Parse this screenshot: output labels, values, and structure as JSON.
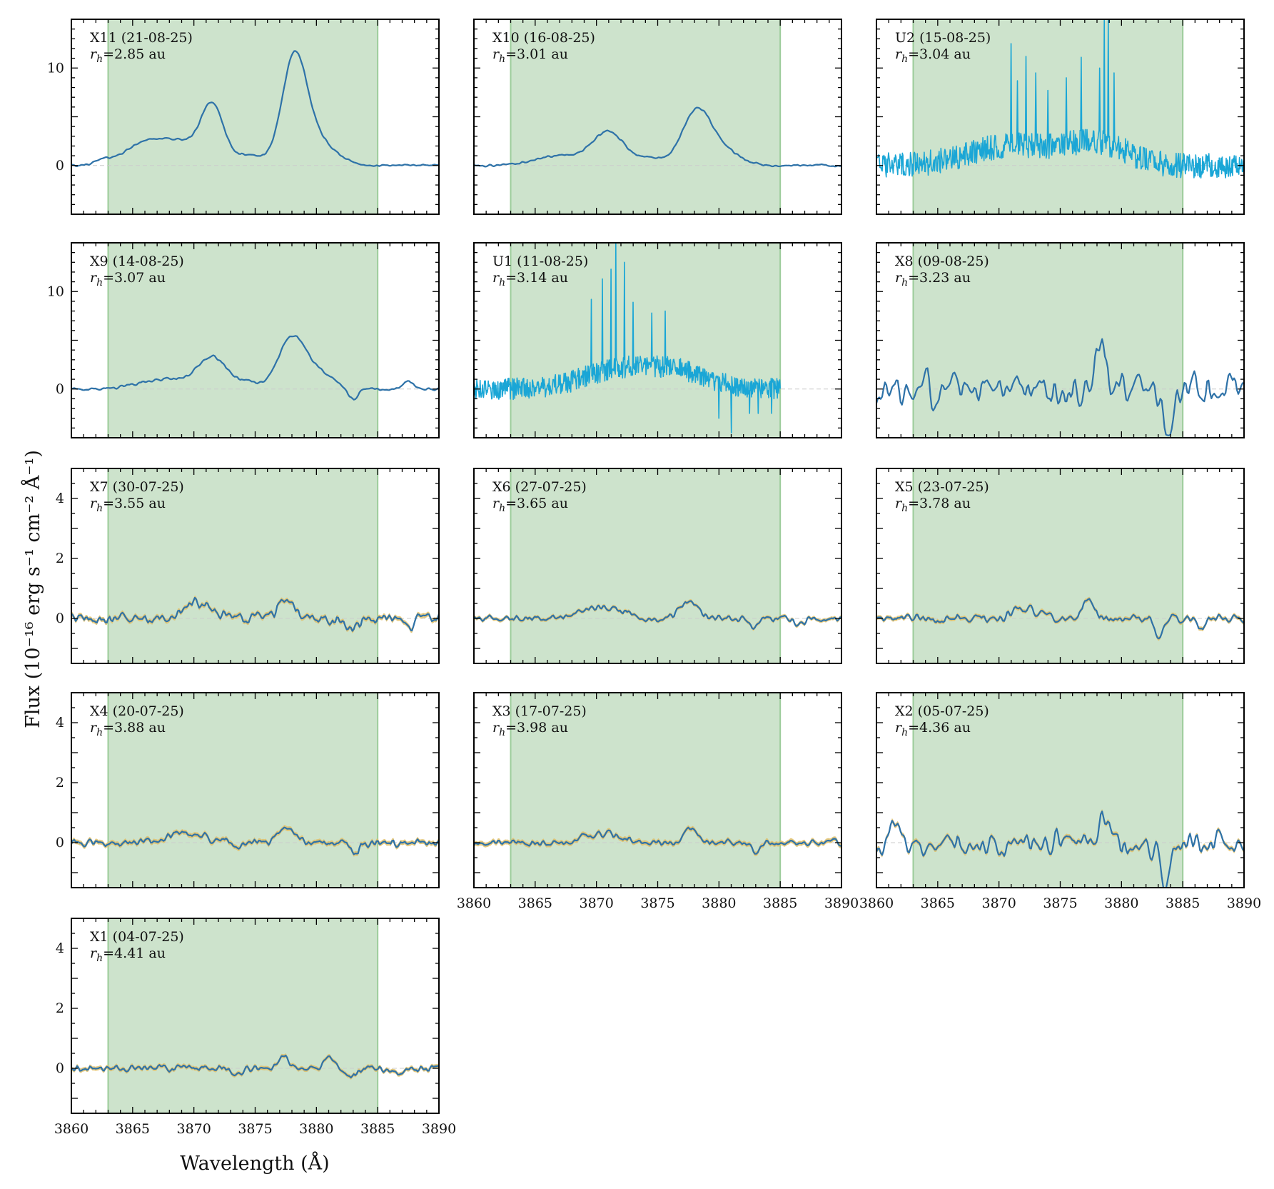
{
  "chart_data": {
    "type": "line",
    "ylabel": "Flux (10⁻¹⁶ erg s⁻¹ cm⁻² Å⁻¹)",
    "xlabel": "Wavelength (Å)",
    "xlim": [
      3860,
      3890
    ],
    "xticks": [
      3860,
      3865,
      3870,
      3875,
      3880,
      3885,
      3890
    ],
    "shaded_band": [
      3863,
      3885
    ],
    "rh_prefix": "r",
    "rh_sub": "h",
    "rh_unit": " au",
    "colors": {
      "line": "#2e72a8",
      "uv_line": "#1aa6d6",
      "error_band": "#e1bf68",
      "band": "#cde3cc",
      "band_edge": "#9ccc9a",
      "zero": "#cccccc"
    },
    "panels": [
      {
        "id": "X11",
        "date": "21-08-25",
        "rh": "2.85",
        "ylim": [
          -5,
          15
        ],
        "yticks": [
          0,
          10
        ],
        "style": "smooth",
        "noise": 0.15,
        "seed": 11,
        "peaks": [
          [
            3862.5,
            0.5,
            0.6
          ],
          [
            3865.5,
            1.3,
            1.5
          ],
          [
            3868.5,
            2.5,
            2.2
          ],
          [
            3871.5,
            5.5,
            0.9
          ],
          [
            3874.5,
            1.0,
            1.2
          ],
          [
            3878.2,
            10.5,
            1.0
          ],
          [
            3880.0,
            2.5,
            1.5
          ]
        ]
      },
      {
        "id": "X10",
        "date": "16-08-25",
        "rh": "3.01",
        "ylim": [
          -5,
          15
        ],
        "yticks": [
          0,
          10
        ],
        "style": "smooth",
        "noise": 0.15,
        "seed": 10,
        "peaks": [
          [
            3867.0,
            1.0,
            2.0
          ],
          [
            3871.0,
            3.4,
            1.3
          ],
          [
            3874.5,
            0.7,
            1.0
          ],
          [
            3878.2,
            5.6,
            1.2
          ],
          [
            3880.5,
            1.3,
            1.3
          ]
        ]
      },
      {
        "id": "U2",
        "date": "15-08-25",
        "rh": "3.04",
        "ylim": [
          -5,
          15
        ],
        "yticks": [
          0,
          10
        ],
        "style": "uv",
        "noise": 1.3,
        "seed": 2,
        "peaks": [
          [
            3871,
            2.0,
            3.5
          ],
          [
            3878,
            2.2,
            2.5
          ]
        ],
        "spikes": [
          [
            3871.0,
            12.5
          ],
          [
            3871.5,
            8.7
          ],
          [
            3872.2,
            11.2
          ],
          [
            3873.0,
            9.5
          ],
          [
            3874.0,
            7.7
          ],
          [
            3875.5,
            9.0
          ],
          [
            3876.7,
            11.1
          ],
          [
            3878.2,
            10.0
          ],
          [
            3878.6,
            15.0
          ],
          [
            3878.9,
            15.0
          ],
          [
            3879.4,
            9.5
          ]
        ]
      },
      {
        "id": "X9",
        "date": "14-08-25",
        "rh": "3.07",
        "ylim": [
          -5,
          15
        ],
        "yticks": [
          0,
          10
        ],
        "style": "smooth",
        "noise": 0.2,
        "seed": 9,
        "peaks": [
          [
            3867.5,
            1.0,
            2.0
          ],
          [
            3871.5,
            3.2,
            1.2
          ],
          [
            3874.5,
            0.6,
            1.0
          ],
          [
            3878.0,
            5.3,
            1.1
          ],
          [
            3880.3,
            1.5,
            1.2
          ],
          [
            3883.0,
            -1.2,
            0.4
          ],
          [
            3887.5,
            0.8,
            0.5
          ]
        ]
      },
      {
        "id": "U1",
        "date": "11-08-25",
        "rh": "3.14",
        "ylim": [
          -5,
          15
        ],
        "yticks": [
          0,
          10
        ],
        "style": "uv",
        "noise": 1.1,
        "seed": 1,
        "xmax": 3885,
        "peaks": [
          [
            3872,
            2.0,
            3.0
          ],
          [
            3877,
            1.5,
            2.5
          ]
        ],
        "spikes": [
          [
            3869.6,
            9.2
          ],
          [
            3870.5,
            11.3
          ],
          [
            3871.2,
            12.3
          ],
          [
            3871.6,
            15.0
          ],
          [
            3872.3,
            13.0
          ],
          [
            3873.0,
            8.9
          ],
          [
            3874.5,
            7.8
          ],
          [
            3875.6,
            8.0
          ]
        ],
        "dips": [
          [
            3880.0,
            -3.0
          ],
          [
            3881.0,
            -4.5
          ],
          [
            3882.5,
            -2.5
          ],
          [
            3883.2,
            -2.5
          ],
          [
            3884.3,
            -2.5
          ]
        ]
      },
      {
        "id": "X8",
        "date": "09-08-25",
        "rh": "3.23",
        "ylim": [
          -5,
          15
        ],
        "yticks": [
          0,
          10
        ],
        "style": "smooth",
        "noise": 3.0,
        "seed": 8,
        "smooth": 2,
        "peaks": [
          [
            3878.3,
            5.0,
            0.4
          ],
          [
            3883.8,
            -5.0,
            0.3
          ]
        ]
      },
      {
        "id": "X7",
        "date": "30-07-25",
        "rh": "3.55",
        "ylim": [
          -1.5,
          5
        ],
        "yticks": [
          0,
          2,
          4
        ],
        "style": "smooth",
        "noise": 0.25,
        "seed": 7,
        "err": 0.08,
        "peaks": [
          [
            3870.5,
            0.5,
            1.2
          ],
          [
            3877.5,
            0.75,
            0.6
          ],
          [
            3883.0,
            -0.4,
            0.4
          ],
          [
            3887.5,
            -0.35,
            0.3
          ]
        ]
      },
      {
        "id": "X6",
        "date": "27-07-25",
        "rh": "3.65",
        "ylim": [
          -1.5,
          5
        ],
        "yticks": [
          0,
          2,
          4
        ],
        "style": "smooth",
        "noise": 0.15,
        "seed": 6,
        "err": 0.06,
        "peaks": [
          [
            3870.5,
            0.4,
            1.5
          ],
          [
            3877.5,
            0.55,
            0.7
          ],
          [
            3882.8,
            -0.3,
            0.4
          ],
          [
            3886.5,
            -0.2,
            0.4
          ]
        ]
      },
      {
        "id": "X5",
        "date": "23-07-25",
        "rh": "3.78",
        "ylim": [
          -1.5,
          5
        ],
        "yticks": [
          0,
          2,
          4
        ],
        "style": "smooth",
        "noise": 0.2,
        "seed": 5,
        "err": 0.07,
        "peaks": [
          [
            3872.0,
            0.3,
            1.0
          ],
          [
            3877.3,
            0.6,
            0.5
          ],
          [
            3883.0,
            -0.55,
            0.3
          ],
          [
            3886.5,
            -0.4,
            0.3
          ]
        ]
      },
      {
        "id": "X4",
        "date": "20-07-25",
        "rh": "3.88",
        "ylim": [
          -1.5,
          5
        ],
        "yticks": [
          0,
          2,
          4
        ],
        "style": "smooth",
        "noise": 0.18,
        "seed": 4,
        "err": 0.08,
        "peaks": [
          [
            3869.5,
            0.3,
            1.5
          ],
          [
            3877.5,
            0.55,
            0.7
          ],
          [
            3883.2,
            -0.45,
            0.3
          ],
          [
            3873.5,
            -0.2,
            0.4
          ]
        ]
      },
      {
        "id": "X3",
        "date": "17-07-25",
        "rh": "3.98",
        "ylim": [
          -1.5,
          5
        ],
        "yticks": [
          0,
          2,
          4
        ],
        "style": "smooth",
        "noise": 0.15,
        "seed": 3,
        "err": 0.08,
        "peaks": [
          [
            3870.5,
            0.3,
            1.5
          ],
          [
            3877.7,
            0.5,
            0.5
          ],
          [
            3883.0,
            -0.4,
            0.3
          ]
        ]
      },
      {
        "id": "X2",
        "date": "05-07-25",
        "rh": "4.36",
        "ylim": [
          -1.5,
          5
        ],
        "yticks": [
          0,
          2,
          4
        ],
        "style": "smooth",
        "noise": 0.7,
        "seed": 12,
        "err": 0.08,
        "smooth": 2,
        "peaks": [
          [
            3883.5,
            -1.2,
            0.3
          ],
          [
            3878.5,
            0.7,
            0.4
          ],
          [
            3861.5,
            0.8,
            0.4
          ]
        ]
      },
      {
        "id": "X1",
        "date": "04-07-25",
        "rh": "4.41",
        "ylim": [
          -1.5,
          5
        ],
        "yticks": [
          0,
          2,
          4
        ],
        "style": "smooth",
        "noise": 0.15,
        "seed": 13,
        "err": 0.07,
        "peaks": [
          [
            3877.3,
            0.45,
            0.4
          ],
          [
            3881.0,
            0.35,
            0.4
          ],
          [
            3882.8,
            -0.3,
            0.4
          ],
          [
            3873.5,
            -0.25,
            0.4
          ],
          [
            3886.5,
            -0.2,
            0.4
          ]
        ]
      }
    ]
  }
}
